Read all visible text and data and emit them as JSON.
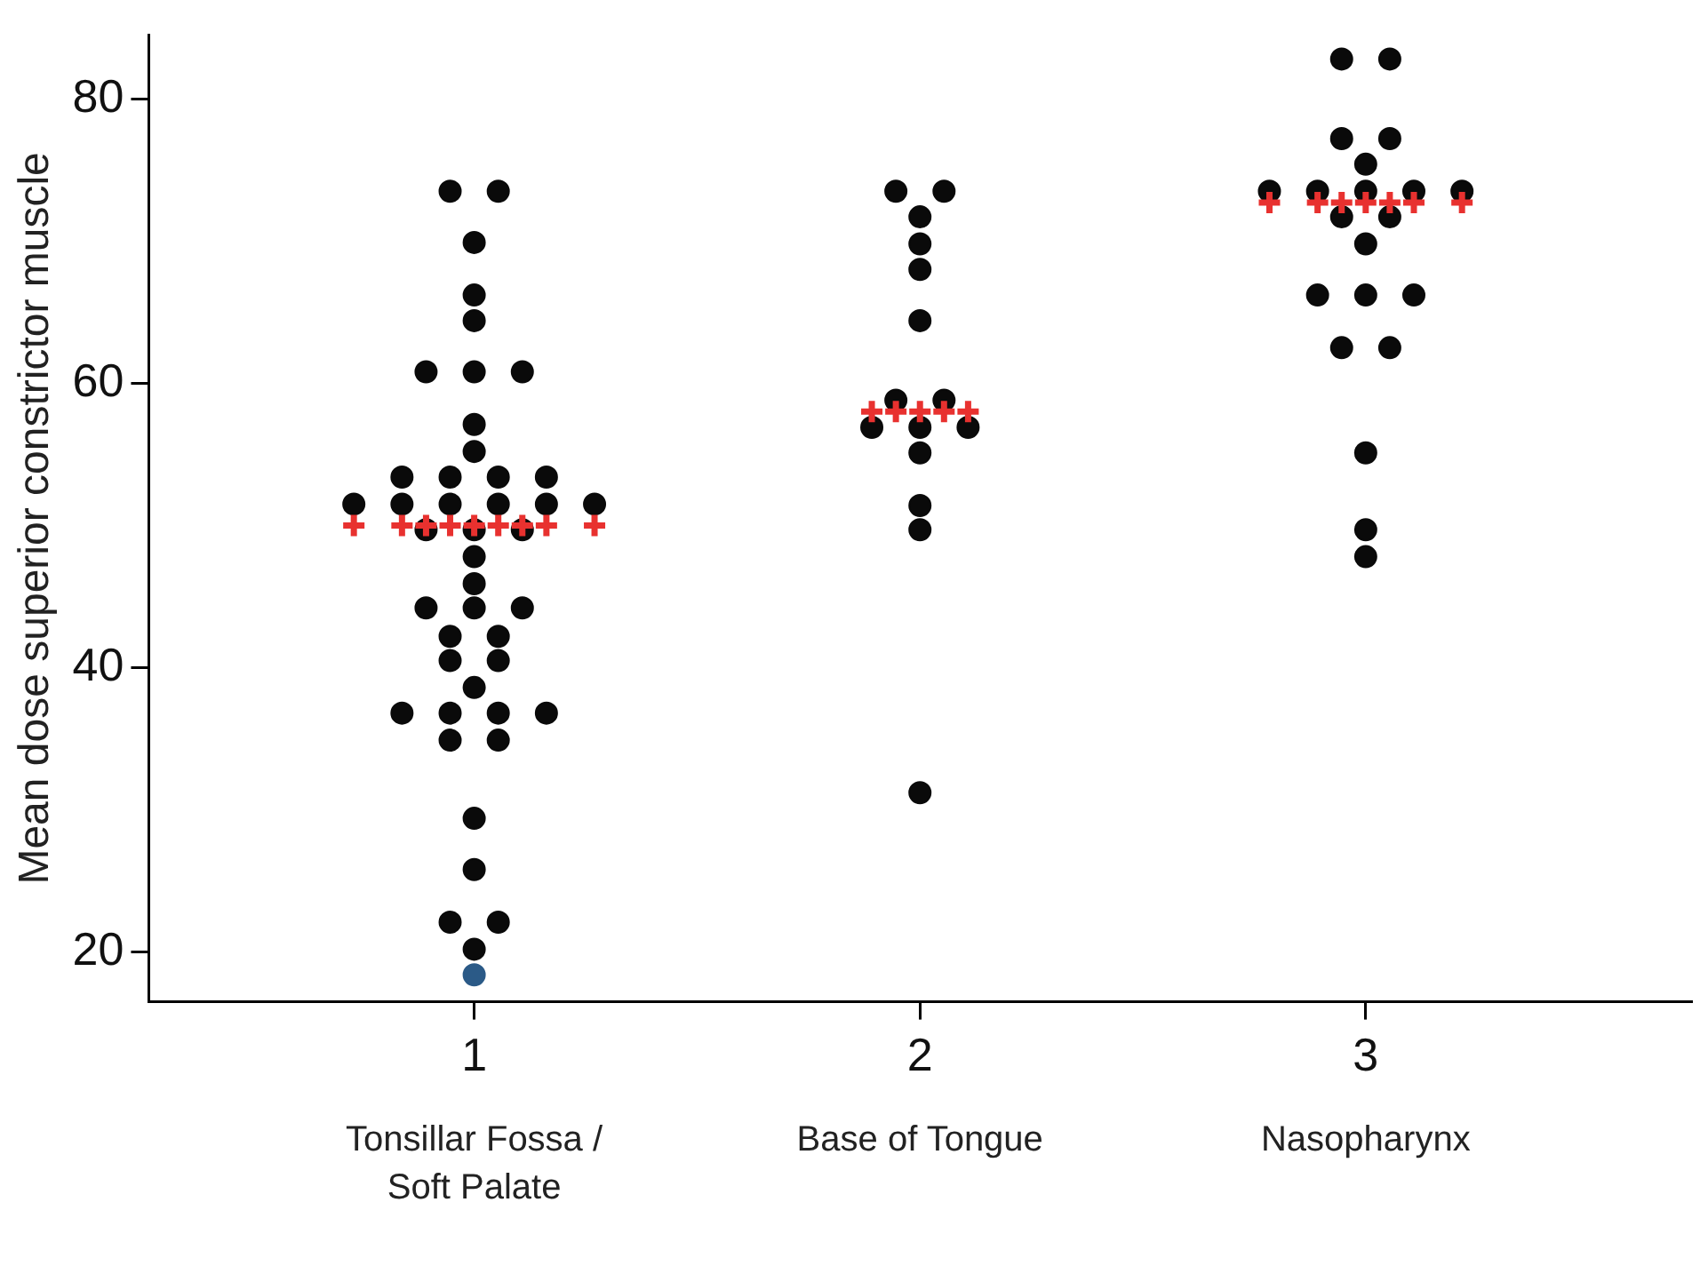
{
  "chart_data": {
    "type": "scatter",
    "ylabel": "Mean dose superior constrictor muscle",
    "xlim": [
      0.27,
      3.73
    ],
    "xticks": [
      1,
      2,
      3
    ],
    "ylim": [
      16.5,
      84.5
    ],
    "yticks": [
      20,
      40,
      60,
      80
    ],
    "grid": false,
    "legend": false,
    "annotations": [
      "Tonsillar Fossa / Soft Palate",
      "Base of Tongue",
      "Nasopharynx"
    ],
    "series": [
      {
        "color": "#0a0a0a",
        "marker": "circle",
        "x": [
          0.946,
          1.054,
          1,
          1,
          1,
          0.892,
          1,
          1.108,
          1,
          1,
          0.838,
          0.946,
          1.054,
          1.162,
          0.73,
          0.838,
          0.946,
          1.054,
          1.162,
          1.27,
          0.892,
          1,
          1.108,
          1,
          1,
          0.892,
          1,
          1.108,
          0.946,
          1.054,
          0.946,
          1.054,
          1,
          0.838,
          0.946,
          1.054,
          1.162,
          0.946,
          1.054,
          1,
          1,
          0.946,
          1.054,
          1,
          1.946,
          2.054,
          2,
          2,
          2,
          2,
          1.946,
          2.054,
          1.892,
          2,
          2.108,
          2,
          2,
          2,
          2,
          2.946,
          3.054,
          2.946,
          3.054,
          3,
          2.784,
          2.892,
          3,
          3.108,
          3.216,
          2.946,
          3.054,
          3,
          2.892,
          3,
          3.108,
          2.946,
          3.054,
          3,
          3,
          3
        ],
        "values": [
          73.5,
          73.5,
          69.9,
          66.2,
          64.4,
          60.8,
          60.8,
          60.8,
          57.1,
          55.2,
          53.4,
          53.4,
          53.4,
          53.4,
          51.5,
          51.5,
          51.5,
          51.5,
          51.5,
          51.5,
          49.7,
          49.7,
          49.7,
          47.8,
          45.9,
          44.2,
          44.2,
          44.2,
          42.2,
          42.2,
          40.5,
          40.5,
          38.6,
          36.8,
          36.8,
          36.8,
          36.8,
          34.9,
          34.9,
          29.4,
          25.8,
          22.1,
          22.1,
          20.2,
          73.5,
          73.5,
          71.7,
          69.8,
          68.0,
          64.4,
          58.8,
          58.8,
          56.9,
          56.9,
          56.9,
          55.1,
          51.4,
          49.7,
          31.2,
          82.8,
          82.8,
          77.2,
          77.2,
          75.4,
          73.5,
          73.5,
          73.5,
          73.5,
          73.5,
          71.7,
          71.7,
          69.8,
          66.2,
          66.2,
          66.2,
          62.5,
          62.5,
          55.1,
          49.7,
          47.8
        ]
      },
      {
        "color": "#2b5a87",
        "marker": "circle",
        "x": [
          1
        ],
        "values": [
          18.4
        ]
      },
      {
        "color": "#e8312f",
        "marker": "cross",
        "x": [
          0.73,
          0.838,
          0.892,
          0.946,
          1,
          1.054,
          1.108,
          1.162,
          1.27,
          1.892,
          1.946,
          2,
          2.054,
          2.108,
          2.784,
          2.892,
          2.946,
          3,
          3.054,
          3.108,
          3.216
        ],
        "values": [
          50.0,
          50.0,
          50.0,
          50.0,
          50.0,
          50.0,
          50.0,
          50.0,
          50.0,
          58.0,
          58.0,
          58.0,
          58.0,
          58.0,
          72.7,
          72.7,
          72.7,
          72.7,
          72.7,
          72.7,
          72.7
        ]
      }
    ]
  }
}
